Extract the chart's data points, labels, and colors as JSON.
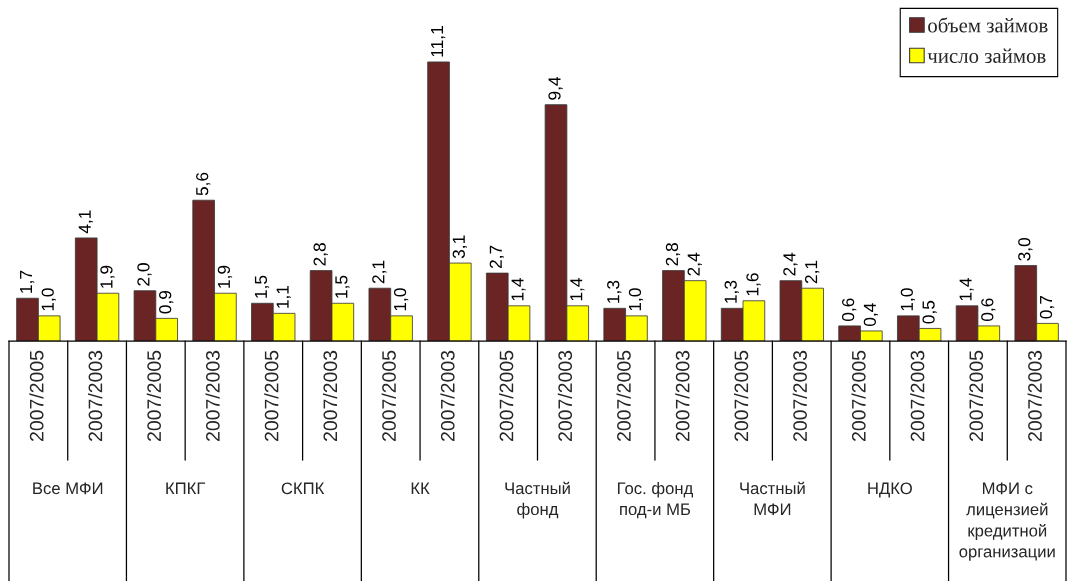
{
  "chart_data": {
    "type": "bar",
    "categories": [
      "2007/2005",
      "2007/2003",
      "2007/2005",
      "2007/2003",
      "2007/2005",
      "2007/2003",
      "2007/2005",
      "2007/2003",
      "2007/2005",
      "2007/2003",
      "2007/2005",
      "2007/2003",
      "2007/2005",
      "2007/2003",
      "2007/2005",
      "2007/2003",
      "2007/2005",
      "2007/2003"
    ],
    "series": [
      {
        "name": "объем займов",
        "color": "#6b2424",
        "values": [
          1.7,
          4.1,
          2.0,
          5.6,
          1.5,
          2.8,
          2.1,
          11.1,
          2.7,
          9.4,
          1.3,
          2.8,
          1.3,
          2.4,
          0.6,
          1.0,
          1.4,
          3.0
        ],
        "value_labels": [
          "1,7",
          "4,1",
          "2,0",
          "5,6",
          "1,5",
          "2,8",
          "2,1",
          "11,1",
          "2,7",
          "9,4",
          "1,3",
          "2,8",
          "1,3",
          "2,4",
          "0,6",
          "1,0",
          "1,4",
          "3,0"
        ]
      },
      {
        "name": "число займов",
        "color": "#ffff00",
        "values": [
          1.0,
          1.9,
          0.9,
          1.9,
          1.1,
          1.5,
          1.0,
          3.1,
          1.4,
          1.4,
          1.0,
          2.4,
          1.6,
          2.1,
          0.4,
          0.5,
          0.6,
          0.7
        ],
        "value_labels": [
          "1,0",
          "1,9",
          "0,9",
          "1,9",
          "1,1",
          "1,5",
          "1,0",
          "3,1",
          "1,4",
          "1,4",
          "1,0",
          "2,4",
          "1,6",
          "2,1",
          "0,4",
          "0,5",
          "0,6",
          "0,7"
        ]
      }
    ],
    "annotations": [
      "Все МФИ",
      "КПКГ",
      "СКПК",
      "КК",
      "Частный\nфонд",
      "Гос. фонд\nпод-и МБ",
      "Частный\nМФИ",
      "НДКО",
      "МФИ с\nлицензией\nкредитной\nорганизации"
    ],
    "legend": "top right"
  }
}
